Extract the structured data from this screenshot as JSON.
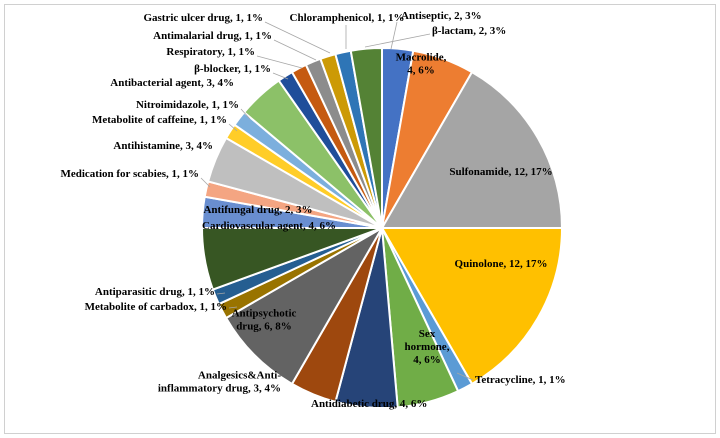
{
  "chart_data": {
    "type": "pie",
    "title": "",
    "start_angle_deg": 0,
    "direction": "clockwise",
    "slices": [
      {
        "label": "Antiseptic, 2, 3%",
        "name": "Antiseptic",
        "value": 2,
        "percent": "3%",
        "color": "#4472c4"
      },
      {
        "label": "Macrolide, 4, 6%",
        "name": "Macrolide",
        "value": 4,
        "percent": "6%",
        "color": "#ed7d31"
      },
      {
        "label": "Sulfonamide, 12, 17%",
        "name": "Sulfonamide",
        "value": 12,
        "percent": "17%",
        "color": "#a5a5a5"
      },
      {
        "label": "Quinolone, 12, 17%",
        "name": "Quinolone",
        "value": 12,
        "percent": "17%",
        "color": "#ffc000"
      },
      {
        "label": "Tetracycline, 1, 1%",
        "name": "Tetracycline",
        "value": 1,
        "percent": "1%",
        "color": "#5b9bd5"
      },
      {
        "label": "Sex hormone, 4, 6%",
        "name": "Sex hormone",
        "value": 4,
        "percent": "6%",
        "color": "#70ad47"
      },
      {
        "label": "Antidiabetic drug, 4, 6%",
        "name": "Antidiabetic drug",
        "value": 4,
        "percent": "6%",
        "color": "#264478"
      },
      {
        "label": "Analgesics&Anti-inflammatory drug, 3, 4%",
        "name": "Analgesics&Anti-inflammatory drug",
        "value": 3,
        "percent": "4%",
        "color": "#9e480e"
      },
      {
        "label": "Antipsychotic drug, 6, 8%",
        "name": "Antipsychotic drug",
        "value": 6,
        "percent": "8%",
        "color": "#636363"
      },
      {
        "label": "Metabolite of carbadox, 1, 1%",
        "name": "Metabolite of carbadox",
        "value": 1,
        "percent": "1%",
        "color": "#997300"
      },
      {
        "label": "Antiparasitic drug, 1, 1%",
        "name": "Antiparasitic drug",
        "value": 1,
        "percent": "1%",
        "color": "#255e91"
      },
      {
        "label": "Cardiovascular agent, 4, 6%",
        "name": "Cardiovascular agent",
        "value": 4,
        "percent": "6%",
        "color": "#375623"
      },
      {
        "label": "Antifungal drug, 2, 3%",
        "name": "Antifungal drug",
        "value": 2,
        "percent": "3%",
        "color": "#698ed0"
      },
      {
        "label": "Medication for scabies, 1, 1%",
        "name": "Medication for scabies",
        "value": 1,
        "percent": "1%",
        "color": "#f4a582"
      },
      {
        "label": "Antihistamine, 3, 4%",
        "name": "Antihistamine",
        "value": 3,
        "percent": "4%",
        "color": "#bfbfbf"
      },
      {
        "label": "Metabolite of caffeine, 1, 1%",
        "name": "Metabolite of caffeine",
        "value": 1,
        "percent": "1%",
        "color": "#ffcd28"
      },
      {
        "label": "Nitroimidazole, 1, 1%",
        "name": "Nitroimidazole",
        "value": 1,
        "percent": "1%",
        "color": "#7cafdd"
      },
      {
        "label": "Antibacterial agent, 3, 4%",
        "name": "Antibacterial agent",
        "value": 3,
        "percent": "4%",
        "color": "#8cc168"
      },
      {
        "label": "β-blocker, 1, 1%",
        "name": "β-blocker",
        "value": 1,
        "percent": "1%",
        "color": "#1f4e9a"
      },
      {
        "label": "Respiratory, 1, 1%",
        "name": "Respiratory",
        "value": 1,
        "percent": "1%",
        "color": "#c55a11"
      },
      {
        "label": "Antimalarial drug, 1, 1%",
        "name": "Antimalarial drug",
        "value": 1,
        "percent": "1%",
        "color": "#8c8c8c"
      },
      {
        "label": "Gastric ulcer drug, 1, 1%",
        "name": "Gastric ulcer drug",
        "value": 1,
        "percent": "1%",
        "color": "#cc9a06"
      },
      {
        "label": "Chloramphenicol, 1, 1%",
        "name": "Chloramphenicol",
        "value": 1,
        "percent": "1%",
        "color": "#2e75b6"
      },
      {
        "label": "β-lactam, 2, 3%",
        "name": "β-lactam",
        "value": 2,
        "percent": "3%",
        "color": "#548235"
      }
    ]
  }
}
